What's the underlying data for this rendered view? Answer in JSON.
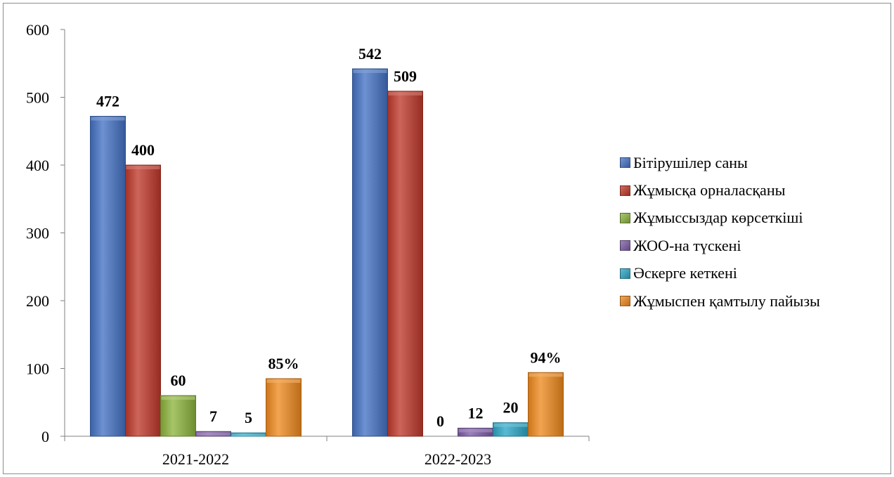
{
  "chart_data": {
    "type": "bar",
    "categories": [
      "2021-2022",
      "2022-2023"
    ],
    "ylim": [
      0,
      600
    ],
    "yticks": [
      0,
      100,
      200,
      300,
      400,
      500,
      600
    ],
    "legend_position": "right",
    "series": [
      {
        "name": "Бітірушілер саны",
        "color": "#4472C4",
        "values": [
          472,
          542
        ],
        "labels": [
          "472",
          "542"
        ]
      },
      {
        "name": "Жұмысқа орналасқаны",
        "color": "#C0392B",
        "values": [
          400,
          509
        ],
        "labels": [
          "400",
          "509"
        ]
      },
      {
        "name": "Жұмыссыздар көрсеткіші",
        "color": "#8DB43E",
        "values": [
          60,
          0
        ],
        "labels": [
          "60",
          "0"
        ]
      },
      {
        "name": "ЖОО-на түскені",
        "color": "#7E5BA6",
        "values": [
          7,
          12
        ],
        "labels": [
          "7",
          "12"
        ]
      },
      {
        "name": "Әскерге кеткені",
        "color": "#2BA7C6",
        "values": [
          5,
          20
        ],
        "labels": [
          "5",
          "20"
        ]
      },
      {
        "name": "Жұмыспен қамтылу пайызы",
        "color": "#F08A1E",
        "values": [
          85,
          94
        ],
        "labels": [
          "85%",
          "94%"
        ]
      }
    ]
  }
}
